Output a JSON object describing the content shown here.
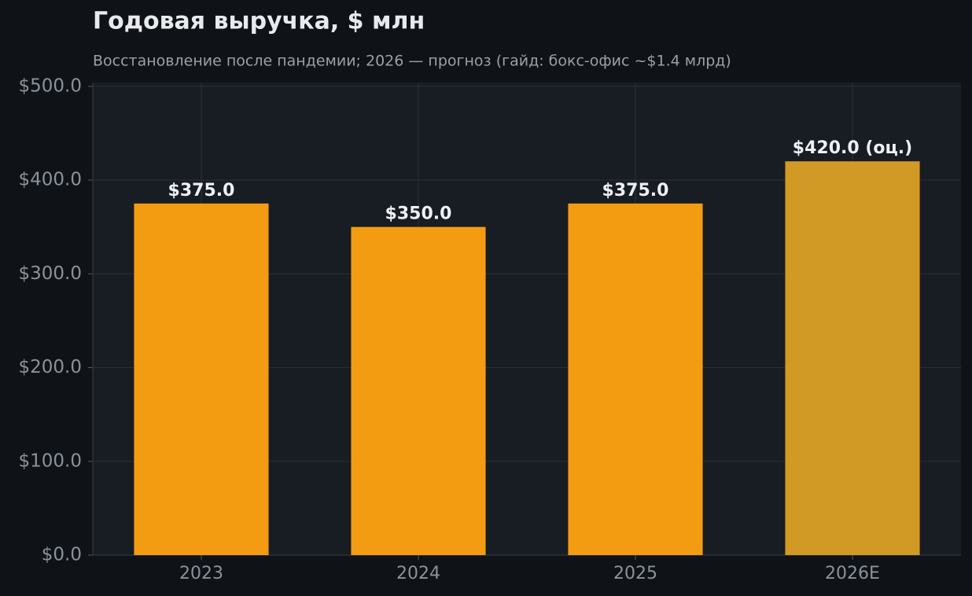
{
  "chart_data": {
    "type": "bar",
    "title": "Годовая выручка, $ млн",
    "subtitle": "Восстановление после пандемии; 2026 — прогноз (гайд: бокс-офис ~$1.4 млрд)",
    "categories": [
      "2023",
      "2024",
      "2025",
      "2026E"
    ],
    "values": [
      375.0,
      350.0,
      375.0,
      420.0
    ],
    "value_labels": [
      "$375.0",
      "$350.0",
      "$375.0",
      "$420.0 (оц.)"
    ],
    "colors": [
      "#f39c12",
      "#f39c12",
      "#f39c12",
      "#d19a24"
    ],
    "ylim": [
      0,
      504
    ],
    "yticks": [
      {
        "value": 0,
        "label": "$0.0"
      },
      {
        "value": 100,
        "label": "$100.0"
      },
      {
        "value": 200,
        "label": "$200.0"
      },
      {
        "value": 300,
        "label": "$300.0"
      },
      {
        "value": 400,
        "label": "$400.0"
      },
      {
        "value": 500,
        "label": "$500.0"
      }
    ],
    "grid": true
  }
}
